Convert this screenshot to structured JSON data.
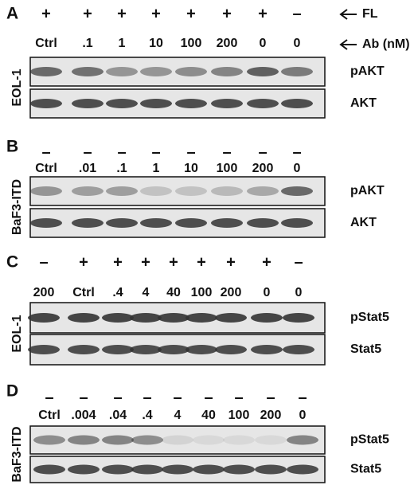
{
  "legend": {
    "fl": "FL",
    "ab": "Ab (nM)"
  },
  "panels": [
    {
      "label": "A",
      "side_label": "EOL-1",
      "signs": [
        "+",
        "+",
        "+",
        "+",
        "+",
        "+",
        "+",
        "–"
      ],
      "lanes": [
        "Ctrl",
        ".1",
        "1",
        "10",
        "100",
        "200",
        "0",
        "0"
      ],
      "rows": [
        "pAKT",
        "AKT"
      ]
    },
    {
      "label": "B",
      "side_label": "BaF3-ITD",
      "signs": [
        "–",
        "–",
        "–",
        "–",
        "–",
        "–",
        "–",
        "–"
      ],
      "lanes": [
        "Ctrl",
        ".01",
        ".1",
        "1",
        "10",
        "100",
        "200",
        "0"
      ],
      "rows": [
        "pAKT",
        "AKT"
      ]
    },
    {
      "label": "C",
      "side_label": "EOL-1",
      "signs": [
        "–",
        "+",
        "+",
        "+",
        "+",
        "+",
        "+",
        "+",
        "–"
      ],
      "lanes": [
        "200",
        "Ctrl",
        ".4",
        "4",
        "40",
        "100",
        "200",
        "0",
        "0"
      ],
      "rows": [
        "pStat5",
        "Stat5"
      ]
    },
    {
      "label": "D",
      "side_label": "BaF3-ITD",
      "signs": [
        "–",
        "–",
        "–",
        "–",
        "–",
        "–",
        "–",
        "–",
        "–"
      ],
      "lanes": [
        "Ctrl",
        ".004",
        ".04",
        ".4",
        "4",
        "40",
        "100",
        "200",
        "0"
      ],
      "rows": [
        "pStat5",
        "Stat5"
      ]
    }
  ]
}
